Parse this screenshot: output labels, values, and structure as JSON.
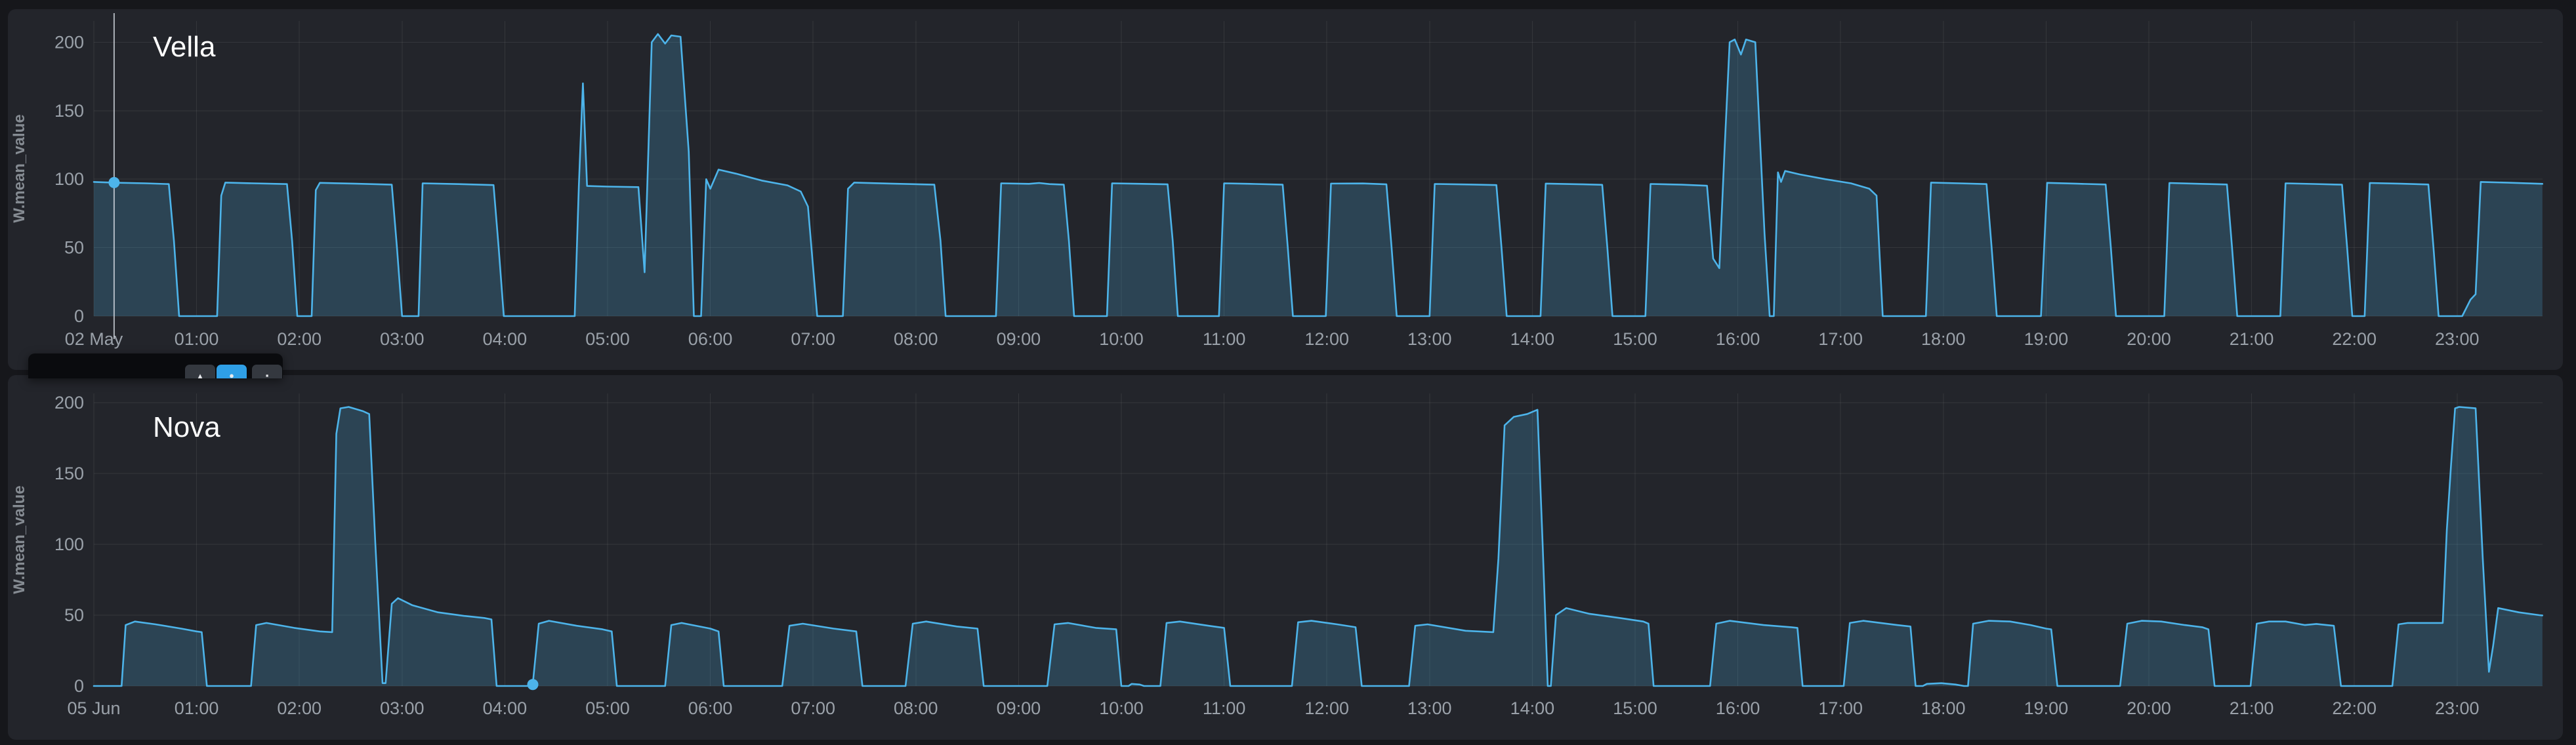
{
  "page": {
    "background": "#16171b",
    "panel_background": "#23252b"
  },
  "colors": {
    "series_line": "#4db4ea",
    "series_fill_opacity": 0.22,
    "grid": "rgba(255,255,255,0.08)",
    "tick_text": "#9aa1a9",
    "axis_title_text": "#858b92",
    "title_text": "#ffffff",
    "crosshair": "rgba(220,226,233,0.75)",
    "tooltip_background": "#0a0b0e",
    "button_dark": "#34383f",
    "button_blue": "#2f9fe6"
  },
  "tooltip": {
    "buttons": [
      {
        "glyph": "▴",
        "style": "dark"
      },
      {
        "glyph": "●",
        "style": "blue"
      },
      {
        "glyph": "▪",
        "style": "dark"
      }
    ]
  },
  "chart_data": [
    {
      "type": "area",
      "title": "Vella",
      "ylabel": "W.mean_value",
      "x_unit": "time of day (02 May)",
      "y_ticks": [
        0,
        50,
        100,
        150,
        200
      ],
      "ylim": [
        0,
        215
      ],
      "xlim_hours": [
        0,
        23.83
      ],
      "grid": true,
      "legend": false,
      "line_color": "#4db4ea",
      "x_ticks": [
        "02 May",
        "01:00",
        "02:00",
        "03:00",
        "04:00",
        "05:00",
        "06:00",
        "07:00",
        "08:00",
        "09:00",
        "10:00",
        "11:00",
        "12:00",
        "13:00",
        "14:00",
        "15:00",
        "16:00",
        "17:00",
        "18:00",
        "19:00",
        "20:00",
        "21:00",
        "22:00",
        "23:00"
      ],
      "cursor": {
        "t": 0.197,
        "value": 97.5,
        "show_line": true
      },
      "points": [
        [
          0.0,
          98
        ],
        [
          0.2,
          97.4
        ],
        [
          0.5,
          97
        ],
        [
          0.73,
          96.4
        ],
        [
          0.78,
          55
        ],
        [
          0.83,
          0
        ],
        [
          1.2,
          0
        ],
        [
          1.24,
          88
        ],
        [
          1.28,
          97.5
        ],
        [
          1.55,
          97
        ],
        [
          1.88,
          96.4
        ],
        [
          1.93,
          55
        ],
        [
          1.98,
          0
        ],
        [
          2.12,
          0
        ],
        [
          2.16,
          92
        ],
        [
          2.2,
          97.3
        ],
        [
          2.55,
          96.7
        ],
        [
          2.9,
          96
        ],
        [
          2.95,
          50
        ],
        [
          3.0,
          0
        ],
        [
          3.16,
          0
        ],
        [
          3.2,
          97
        ],
        [
          3.55,
          96.4
        ],
        [
          3.89,
          95.7
        ],
        [
          3.94,
          50
        ],
        [
          3.99,
          0
        ],
        [
          4.68,
          0
        ],
        [
          4.72,
          95
        ],
        [
          4.76,
          170
        ],
        [
          4.8,
          95
        ],
        [
          5.0,
          94.6
        ],
        [
          5.3,
          94.2
        ],
        [
          5.36,
          32
        ],
        [
          5.43,
          200
        ],
        [
          5.49,
          206
        ],
        [
          5.56,
          199
        ],
        [
          5.62,
          205
        ],
        [
          5.71,
          204
        ],
        [
          5.79,
          120
        ],
        [
          5.84,
          0
        ],
        [
          5.91,
          0
        ],
        [
          5.96,
          100
        ],
        [
          6.0,
          93
        ],
        [
          6.08,
          107
        ],
        [
          6.25,
          104
        ],
        [
          6.5,
          99
        ],
        [
          6.75,
          95.5
        ],
        [
          6.88,
          91
        ],
        [
          6.95,
          80
        ],
        [
          7.04,
          0
        ],
        [
          7.29,
          0
        ],
        [
          7.34,
          93
        ],
        [
          7.4,
          97.5
        ],
        [
          7.75,
          96.8
        ],
        [
          8.18,
          96
        ],
        [
          8.24,
          55
        ],
        [
          8.29,
          0
        ],
        [
          8.78,
          0
        ],
        [
          8.83,
          97
        ],
        [
          9.1,
          96.6
        ],
        [
          9.2,
          97.2
        ],
        [
          9.3,
          96.4
        ],
        [
          9.44,
          96
        ],
        [
          9.49,
          55
        ],
        [
          9.54,
          0
        ],
        [
          9.86,
          0
        ],
        [
          9.91,
          97
        ],
        [
          10.2,
          96.6
        ],
        [
          10.45,
          96.2
        ],
        [
          10.5,
          55
        ],
        [
          10.55,
          0
        ],
        [
          10.95,
          0
        ],
        [
          11.0,
          97
        ],
        [
          11.3,
          96.5
        ],
        [
          11.57,
          96
        ],
        [
          11.62,
          50
        ],
        [
          11.67,
          0
        ],
        [
          11.99,
          0
        ],
        [
          12.04,
          96.8
        ],
        [
          12.35,
          96.9
        ],
        [
          12.58,
          96.2
        ],
        [
          12.63,
          50
        ],
        [
          12.68,
          0
        ],
        [
          13.0,
          0
        ],
        [
          13.05,
          96.5
        ],
        [
          13.38,
          96.1
        ],
        [
          13.65,
          95.7
        ],
        [
          13.7,
          50
        ],
        [
          13.75,
          0
        ],
        [
          14.08,
          0
        ],
        [
          14.13,
          96.8
        ],
        [
          14.45,
          96.3
        ],
        [
          14.68,
          95.9
        ],
        [
          14.73,
          50
        ],
        [
          14.78,
          0
        ],
        [
          15.1,
          0
        ],
        [
          15.15,
          96.5
        ],
        [
          15.45,
          96
        ],
        [
          15.7,
          95.2
        ],
        [
          15.76,
          42
        ],
        [
          15.82,
          35
        ],
        [
          15.87,
          120
        ],
        [
          15.92,
          200
        ],
        [
          15.97,
          202
        ],
        [
          16.03,
          191
        ],
        [
          16.08,
          202
        ],
        [
          16.17,
          200
        ],
        [
          16.26,
          60
        ],
        [
          16.31,
          0
        ],
        [
          16.35,
          0
        ],
        [
          16.39,
          105
        ],
        [
          16.42,
          98
        ],
        [
          16.46,
          106
        ],
        [
          16.6,
          103.5
        ],
        [
          16.85,
          100
        ],
        [
          17.1,
          97
        ],
        [
          17.28,
          93
        ],
        [
          17.35,
          88
        ],
        [
          17.41,
          0
        ],
        [
          17.83,
          0
        ],
        [
          17.88,
          97.5
        ],
        [
          18.15,
          97
        ],
        [
          18.42,
          96.4
        ],
        [
          18.47,
          50
        ],
        [
          18.52,
          0
        ],
        [
          18.95,
          0
        ],
        [
          19.01,
          97.3
        ],
        [
          19.3,
          96.7
        ],
        [
          19.58,
          96.1
        ],
        [
          19.63,
          50
        ],
        [
          19.68,
          0
        ],
        [
          20.15,
          0
        ],
        [
          20.2,
          97.2
        ],
        [
          20.5,
          96.6
        ],
        [
          20.76,
          96.1
        ],
        [
          20.81,
          50
        ],
        [
          20.86,
          0
        ],
        [
          21.28,
          0
        ],
        [
          21.33,
          97
        ],
        [
          21.6,
          96.5
        ],
        [
          21.88,
          96
        ],
        [
          21.93,
          50
        ],
        [
          21.98,
          0
        ],
        [
          22.1,
          0
        ],
        [
          22.15,
          97.2
        ],
        [
          22.45,
          96.7
        ],
        [
          22.72,
          96.1
        ],
        [
          22.77,
          50
        ],
        [
          22.82,
          0
        ],
        [
          23.05,
          0
        ],
        [
          23.13,
          12
        ],
        [
          23.18,
          16
        ],
        [
          23.23,
          98
        ],
        [
          23.5,
          97.4
        ],
        [
          23.83,
          96.6
        ]
      ]
    },
    {
      "type": "area",
      "title": "Nova",
      "ylabel": "W.mean_value",
      "x_unit": "time of day (05 Jun)",
      "y_ticks": [
        0,
        50,
        100,
        150,
        200
      ],
      "ylim": [
        0,
        206
      ],
      "xlim_hours": [
        0,
        23.83
      ],
      "grid": true,
      "legend": false,
      "line_color": "#4db4ea",
      "x_ticks": [
        "05 Jun",
        "01:00",
        "02:00",
        "03:00",
        "04:00",
        "05:00",
        "06:00",
        "07:00",
        "08:00",
        "09:00",
        "10:00",
        "11:00",
        "12:00",
        "13:00",
        "14:00",
        "15:00",
        "16:00",
        "17:00",
        "18:00",
        "19:00",
        "20:00",
        "21:00",
        "22:00",
        "23:00"
      ],
      "cursor": {
        "t": 4.272,
        "value": 1,
        "show_line": false
      },
      "points": [
        [
          0.0,
          0
        ],
        [
          0.27,
          0
        ],
        [
          0.31,
          43
        ],
        [
          0.4,
          45.5
        ],
        [
          0.6,
          43.5
        ],
        [
          0.85,
          40.5
        ],
        [
          1.0,
          38.5
        ],
        [
          1.05,
          38
        ],
        [
          1.1,
          0
        ],
        [
          1.53,
          0
        ],
        [
          1.58,
          43
        ],
        [
          1.68,
          44.5
        ],
        [
          1.95,
          41
        ],
        [
          2.2,
          38.5
        ],
        [
          2.32,
          38
        ],
        [
          2.36,
          178
        ],
        [
          2.4,
          196
        ],
        [
          2.48,
          197
        ],
        [
          2.62,
          194
        ],
        [
          2.68,
          192
        ],
        [
          2.74,
          100
        ],
        [
          2.81,
          2
        ],
        [
          2.84,
          2
        ],
        [
          2.9,
          58
        ],
        [
          2.96,
          62
        ],
        [
          3.1,
          57
        ],
        [
          3.35,
          52
        ],
        [
          3.6,
          49.5
        ],
        [
          3.8,
          48
        ],
        [
          3.87,
          47
        ],
        [
          3.92,
          0
        ],
        [
          4.27,
          0
        ],
        [
          4.33,
          44
        ],
        [
          4.43,
          46
        ],
        [
          4.7,
          42.5
        ],
        [
          4.95,
          40
        ],
        [
          5.04,
          38.5
        ],
        [
          5.09,
          0
        ],
        [
          5.56,
          0
        ],
        [
          5.62,
          43
        ],
        [
          5.72,
          44.5
        ],
        [
          6.0,
          40.5
        ],
        [
          6.08,
          38.5
        ],
        [
          6.13,
          0
        ],
        [
          6.7,
          0
        ],
        [
          6.77,
          42.5
        ],
        [
          6.9,
          44
        ],
        [
          7.2,
          40.5
        ],
        [
          7.42,
          38.5
        ],
        [
          7.48,
          0
        ],
        [
          7.9,
          0
        ],
        [
          7.97,
          44
        ],
        [
          8.1,
          45.5
        ],
        [
          8.4,
          42
        ],
        [
          8.6,
          40.5
        ],
        [
          8.66,
          0
        ],
        [
          9.28,
          0
        ],
        [
          9.35,
          43.5
        ],
        [
          9.48,
          44.5
        ],
        [
          9.75,
          41
        ],
        [
          9.95,
          40
        ],
        [
          10.0,
          0
        ],
        [
          10.07,
          0
        ],
        [
          10.1,
          1.5
        ],
        [
          10.18,
          1
        ],
        [
          10.22,
          0
        ],
        [
          10.38,
          0
        ],
        [
          10.44,
          44.5
        ],
        [
          10.57,
          45.5
        ],
        [
          10.85,
          42.5
        ],
        [
          11.0,
          41
        ],
        [
          11.06,
          0
        ],
        [
          11.66,
          0
        ],
        [
          11.72,
          45
        ],
        [
          11.85,
          46
        ],
        [
          12.1,
          43.5
        ],
        [
          12.28,
          41.5
        ],
        [
          12.34,
          0
        ],
        [
          12.8,
          0
        ],
        [
          12.86,
          42.5
        ],
        [
          12.98,
          43.5
        ],
        [
          13.35,
          39
        ],
        [
          13.62,
          38
        ],
        [
          13.67,
          90
        ],
        [
          13.73,
          184
        ],
        [
          13.82,
          190
        ],
        [
          13.95,
          192
        ],
        [
          14.05,
          195
        ],
        [
          14.1,
          100
        ],
        [
          14.15,
          0
        ],
        [
          14.18,
          0
        ],
        [
          14.23,
          50
        ],
        [
          14.33,
          55
        ],
        [
          14.55,
          51
        ],
        [
          14.85,
          48
        ],
        [
          15.08,
          45.5
        ],
        [
          15.13,
          44
        ],
        [
          15.18,
          0
        ],
        [
          15.73,
          0
        ],
        [
          15.79,
          44
        ],
        [
          15.92,
          46
        ],
        [
          16.25,
          43
        ],
        [
          16.52,
          41.5
        ],
        [
          16.58,
          41
        ],
        [
          16.63,
          0
        ],
        [
          17.03,
          0
        ],
        [
          17.09,
          44.5
        ],
        [
          17.22,
          46
        ],
        [
          17.55,
          43
        ],
        [
          17.68,
          42
        ],
        [
          17.73,
          0
        ],
        [
          17.8,
          0
        ],
        [
          17.84,
          1.5
        ],
        [
          17.98,
          2
        ],
        [
          18.12,
          1
        ],
        [
          18.2,
          0
        ],
        [
          18.24,
          0
        ],
        [
          18.29,
          44
        ],
        [
          18.44,
          46
        ],
        [
          18.65,
          45.5
        ],
        [
          18.85,
          43
        ],
        [
          19.0,
          40.5
        ],
        [
          19.05,
          40
        ],
        [
          19.11,
          0
        ],
        [
          19.72,
          0
        ],
        [
          19.79,
          44
        ],
        [
          19.93,
          46
        ],
        [
          20.12,
          45.5
        ],
        [
          20.35,
          43
        ],
        [
          20.52,
          41.5
        ],
        [
          20.58,
          40
        ],
        [
          20.64,
          0
        ],
        [
          20.99,
          0
        ],
        [
          21.05,
          44
        ],
        [
          21.17,
          45.5
        ],
        [
          21.33,
          45.5
        ],
        [
          21.52,
          43
        ],
        [
          21.63,
          43.8
        ],
        [
          21.73,
          43
        ],
        [
          21.8,
          42.5
        ],
        [
          21.87,
          0
        ],
        [
          22.37,
          0
        ],
        [
          22.43,
          43.5
        ],
        [
          22.52,
          44.5
        ],
        [
          22.73,
          44.5
        ],
        [
          22.86,
          44.5
        ],
        [
          22.9,
          110
        ],
        [
          22.94,
          155
        ],
        [
          22.98,
          196
        ],
        [
          23.02,
          197
        ],
        [
          23.18,
          196
        ],
        [
          23.25,
          90
        ],
        [
          23.31,
          10
        ],
        [
          23.35,
          28
        ],
        [
          23.4,
          55
        ],
        [
          23.6,
          52
        ],
        [
          23.8,
          50
        ],
        [
          23.83,
          49.8
        ]
      ]
    }
  ]
}
